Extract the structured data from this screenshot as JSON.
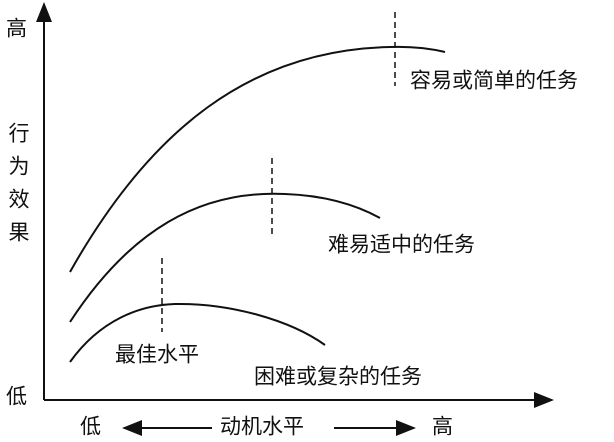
{
  "y_axis": {
    "top": "高",
    "label": "行为效果",
    "bottom": "低"
  },
  "x_axis": {
    "left": "低",
    "label": "动机水平",
    "right": "高"
  },
  "curves": [
    {
      "label": "容易或简单的任务"
    },
    {
      "label": "难易适中的任务"
    },
    {
      "label": "困难或复杂的任务"
    }
  ],
  "annotation": "最佳水平"
}
